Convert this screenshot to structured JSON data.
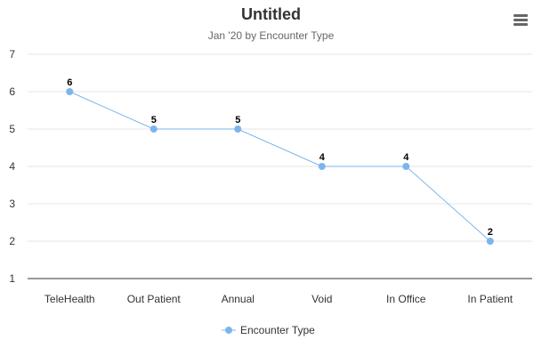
{
  "chart_data": {
    "type": "line",
    "title": "Untitled",
    "subtitle": "Jan '20 by Encounter Type",
    "categories": [
      "TeleHealth",
      "Out Patient",
      "Annual",
      "Void",
      "In Office",
      "In Patient"
    ],
    "series": [
      {
        "name": "Encounter Type",
        "values": [
          6,
          5,
          5,
          4,
          4,
          2
        ],
        "color": "#7cb5ec"
      }
    ],
    "ylim": [
      1,
      7
    ],
    "yticks": [
      1,
      2,
      3,
      4,
      5,
      6,
      7
    ],
    "grid": true,
    "legend": "bottom-center",
    "data_labels": true
  },
  "menu": {
    "icon": "hamburger-menu-icon"
  },
  "colors": {
    "series": "#7cb5ec",
    "grid": "#e6e6e6",
    "axis": "#333333"
  }
}
